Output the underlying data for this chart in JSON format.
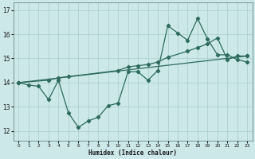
{
  "xlabel": "Humidex (Indice chaleur)",
  "bg_color": "#cce8e8",
  "grid_color": "#aacccc",
  "line_color": "#2d6b5e",
  "xlim": [
    -0.5,
    23.5
  ],
  "ylim": [
    11.6,
    17.3
  ],
  "xticks": [
    0,
    1,
    2,
    3,
    4,
    5,
    6,
    7,
    8,
    9,
    10,
    11,
    12,
    13,
    14,
    15,
    16,
    17,
    18,
    19,
    20,
    21,
    22,
    23
  ],
  "yticks": [
    12,
    13,
    14,
    15,
    16,
    17
  ],
  "line1_x": [
    0,
    1,
    2,
    3,
    4,
    5,
    6,
    7,
    8,
    9,
    10,
    11,
    12,
    13,
    14,
    15,
    16,
    17,
    18,
    19,
    20,
    21,
    22,
    23
  ],
  "line1_y": [
    14.0,
    13.9,
    13.85,
    13.3,
    14.1,
    12.75,
    12.15,
    12.42,
    12.57,
    13.05,
    13.15,
    14.45,
    14.45,
    14.1,
    14.5,
    16.35,
    16.05,
    15.75,
    16.65,
    15.8,
    15.15,
    15.15,
    14.95,
    14.85
  ],
  "line2_x": [
    0,
    3,
    4,
    5,
    10,
    11,
    12,
    13,
    14,
    15,
    17,
    18,
    19,
    20,
    21,
    22,
    23
  ],
  "line2_y": [
    14.0,
    14.1,
    14.2,
    14.25,
    14.5,
    14.65,
    14.7,
    14.75,
    14.85,
    15.05,
    15.3,
    15.45,
    15.6,
    15.85,
    14.95,
    15.1,
    15.1
  ],
  "line3_x": [
    0,
    23
  ],
  "line3_y": [
    14.0,
    15.1
  ]
}
